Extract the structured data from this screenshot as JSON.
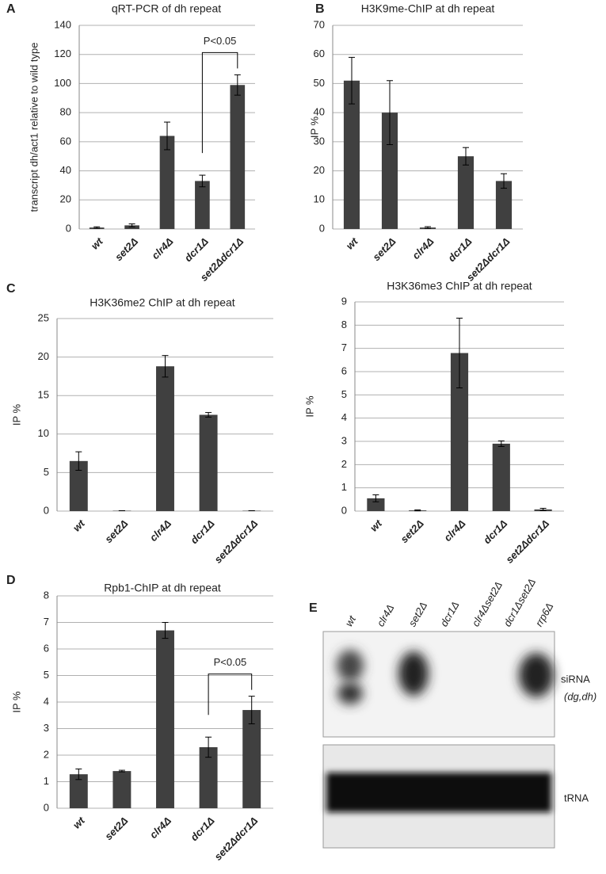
{
  "chart_data": [
    {
      "type": "bar",
      "panel": "A",
      "title": "qRT-PCR of dh repeat",
      "ylabel": "transcript dh/act1  relative to  wild type",
      "categories": [
        "wt",
        "set2Δ",
        "clr4Δ",
        "dcr1Δ",
        "set2Δdcr1Δ"
      ],
      "values": [
        1,
        2.5,
        64,
        33,
        99
      ],
      "errors": [
        0.5,
        1,
        9.5,
        4,
        7
      ],
      "color": "#404040",
      "ylim": [
        0,
        140
      ],
      "yticks": [
        0,
        20,
        40,
        60,
        80,
        100,
        120,
        140
      ],
      "grid": true,
      "annotations": [
        {
          "text": "P<0.05",
          "from": 3,
          "to": 4
        }
      ]
    },
    {
      "type": "bar",
      "panel": "B",
      "title": "H3K9me-ChIP at dh repeat",
      "ylabel": "IP %",
      "categories": [
        "wt",
        "set2Δ",
        "clr4Δ",
        "dcr1Δ",
        "set2Δdcr1Δ"
      ],
      "values": [
        51,
        40,
        0.5,
        25,
        16.5
      ],
      "errors": [
        8,
        11,
        0.3,
        3,
        2.5
      ],
      "color": "#404040",
      "ylim": [
        0,
        70
      ],
      "yticks": [
        0,
        10,
        20,
        30,
        40,
        50,
        60,
        70
      ],
      "grid": true
    },
    {
      "type": "bar",
      "panel": "C",
      "title": "H3K36me2 ChIP at dh repeat",
      "ylabel": "IP %",
      "categories": [
        "wt",
        "set2Δ",
        "clr4Δ",
        "dcr1Δ",
        "set2Δdcr1Δ"
      ],
      "values": [
        6.5,
        0.05,
        18.8,
        12.5,
        0.05
      ],
      "errors": [
        1.2,
        0,
        1.4,
        0.3,
        0
      ],
      "color": "#404040",
      "ylim": [
        0,
        25
      ],
      "yticks": [
        0,
        5,
        10,
        15,
        20,
        25
      ],
      "grid": true
    },
    {
      "type": "bar",
      "title": "H3K36me3 ChIP at dh repeat",
      "ylabel": "IP %",
      "categories": [
        "wt",
        "set2Δ",
        "clr4Δ",
        "dcr1Δ",
        "set2Δdcr1Δ"
      ],
      "values": [
        0.55,
        0.03,
        6.8,
        2.9,
        0.07
      ],
      "errors": [
        0.15,
        0.02,
        1.5,
        0.12,
        0.05
      ],
      "color": "#404040",
      "ylim": [
        0,
        9
      ],
      "yticks": [
        0,
        1,
        2,
        3,
        4,
        5,
        6,
        7,
        8,
        9
      ],
      "grid": true
    },
    {
      "type": "bar",
      "panel": "D",
      "title": "Rpb1-ChIP at dh repeat",
      "ylabel": "IP %",
      "categories": [
        "wt",
        "set2Δ",
        "clr4Δ",
        "dcr1Δ",
        "set2Δdcr1Δ"
      ],
      "values": [
        1.28,
        1.4,
        6.7,
        2.3,
        3.7
      ],
      "errors": [
        0.2,
        0.03,
        0.3,
        0.38,
        0.52
      ],
      "color": "#404040",
      "ylim": [
        0,
        8
      ],
      "yticks": [
        0,
        1,
        2,
        3,
        4,
        5,
        6,
        7,
        8
      ],
      "grid": true,
      "annotations": [
        {
          "text": "P<0.05",
          "from": 3,
          "to": 4
        }
      ]
    }
  ],
  "blot": {
    "panel": "E",
    "lanes": [
      "wt",
      "clr4Δ",
      "set2Δ",
      "dcr1Δ",
      "clr4Δset2Δ",
      "dcr1Δset2Δ",
      "rrp6Δ"
    ],
    "upper_label": "siRNA",
    "upper_sublabel": "(dg,dh)",
    "lower_label": "tRNA"
  }
}
